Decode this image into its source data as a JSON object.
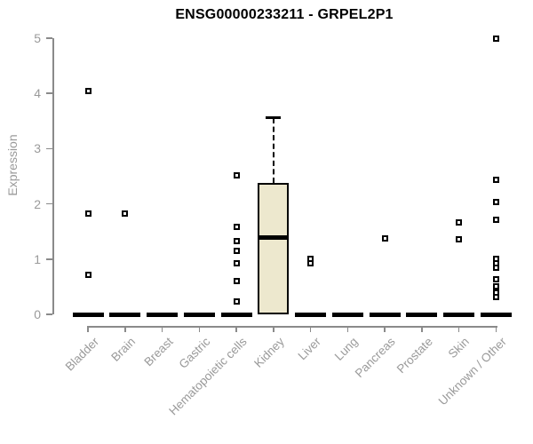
{
  "chart_data": {
    "type": "boxplot",
    "title": "ENSG00000233211 - GRPEL2P1",
    "ylabel": "Expression",
    "xlabel": "",
    "ylim": [
      0,
      5
    ],
    "yticks": [
      0,
      1,
      2,
      3,
      4,
      5
    ],
    "grid": false,
    "legend": null,
    "categories": [
      "Bladder",
      "Brain",
      "Breast",
      "Gastric",
      "Hematopoietic cells",
      "Kidney",
      "Liver",
      "Lung",
      "Pancreas",
      "Prostate",
      "Skin",
      "Unknown / Other"
    ],
    "boxes": [
      {
        "category": "Bladder",
        "q1": 0,
        "median": 0,
        "q3": 0,
        "whisker_low": 0,
        "whisker_high": 0,
        "outliers": [
          4.05,
          1.82,
          0.71
        ]
      },
      {
        "category": "Brain",
        "q1": 0,
        "median": 0,
        "q3": 0,
        "whisker_low": 0,
        "whisker_high": 0,
        "outliers": [
          1.83
        ]
      },
      {
        "category": "Breast",
        "q1": 0,
        "median": 0,
        "q3": 0,
        "whisker_low": 0,
        "whisker_high": 0,
        "outliers": []
      },
      {
        "category": "Gastric",
        "q1": 0,
        "median": 0,
        "q3": 0,
        "whisker_low": 0,
        "whisker_high": 0,
        "outliers": []
      },
      {
        "category": "Hematopoietic cells",
        "q1": 0,
        "median": 0,
        "q3": 0,
        "whisker_low": 0,
        "whisker_high": 0,
        "outliers": [
          2.51,
          1.58,
          1.33,
          1.15,
          0.93,
          0.6,
          0.24
        ]
      },
      {
        "category": "Kidney",
        "q1": 0,
        "median": 1.39,
        "q3": 2.38,
        "whisker_low": 0,
        "whisker_high": 3.56,
        "outliers": []
      },
      {
        "category": "Liver",
        "q1": 0,
        "median": 0,
        "q3": 0,
        "whisker_low": 0,
        "whisker_high": 0,
        "outliers": [
          1.0,
          0.92
        ]
      },
      {
        "category": "Lung",
        "q1": 0,
        "median": 0,
        "q3": 0,
        "whisker_low": 0,
        "whisker_high": 0,
        "outliers": []
      },
      {
        "category": "Pancreas",
        "q1": 0,
        "median": 0,
        "q3": 0,
        "whisker_low": 0,
        "whisker_high": 0,
        "outliers": [
          1.38
        ]
      },
      {
        "category": "Prostate",
        "q1": 0,
        "median": 0,
        "q3": 0,
        "whisker_low": 0,
        "whisker_high": 0,
        "outliers": []
      },
      {
        "category": "Skin",
        "q1": 0,
        "median": 0,
        "q3": 0,
        "whisker_low": 0,
        "whisker_high": 0,
        "outliers": [
          1.66,
          1.36
        ]
      },
      {
        "category": "Unknown / Other",
        "q1": 0,
        "median": 0,
        "q3": 0,
        "whisker_low": 0,
        "whisker_high": 0,
        "outliers": [
          5.0,
          2.43,
          2.03,
          1.71,
          1.01,
          0.92,
          0.84,
          0.64,
          0.5,
          0.4,
          0.31
        ]
      }
    ],
    "colors": {
      "box_fill": "#EDE8CE",
      "box_border": "#000000",
      "median": "#000000",
      "outlier_fill": "#ffffff",
      "axis": "#8a8a8a",
      "tick_label": "#9a9a9a",
      "title": "#000000"
    }
  }
}
